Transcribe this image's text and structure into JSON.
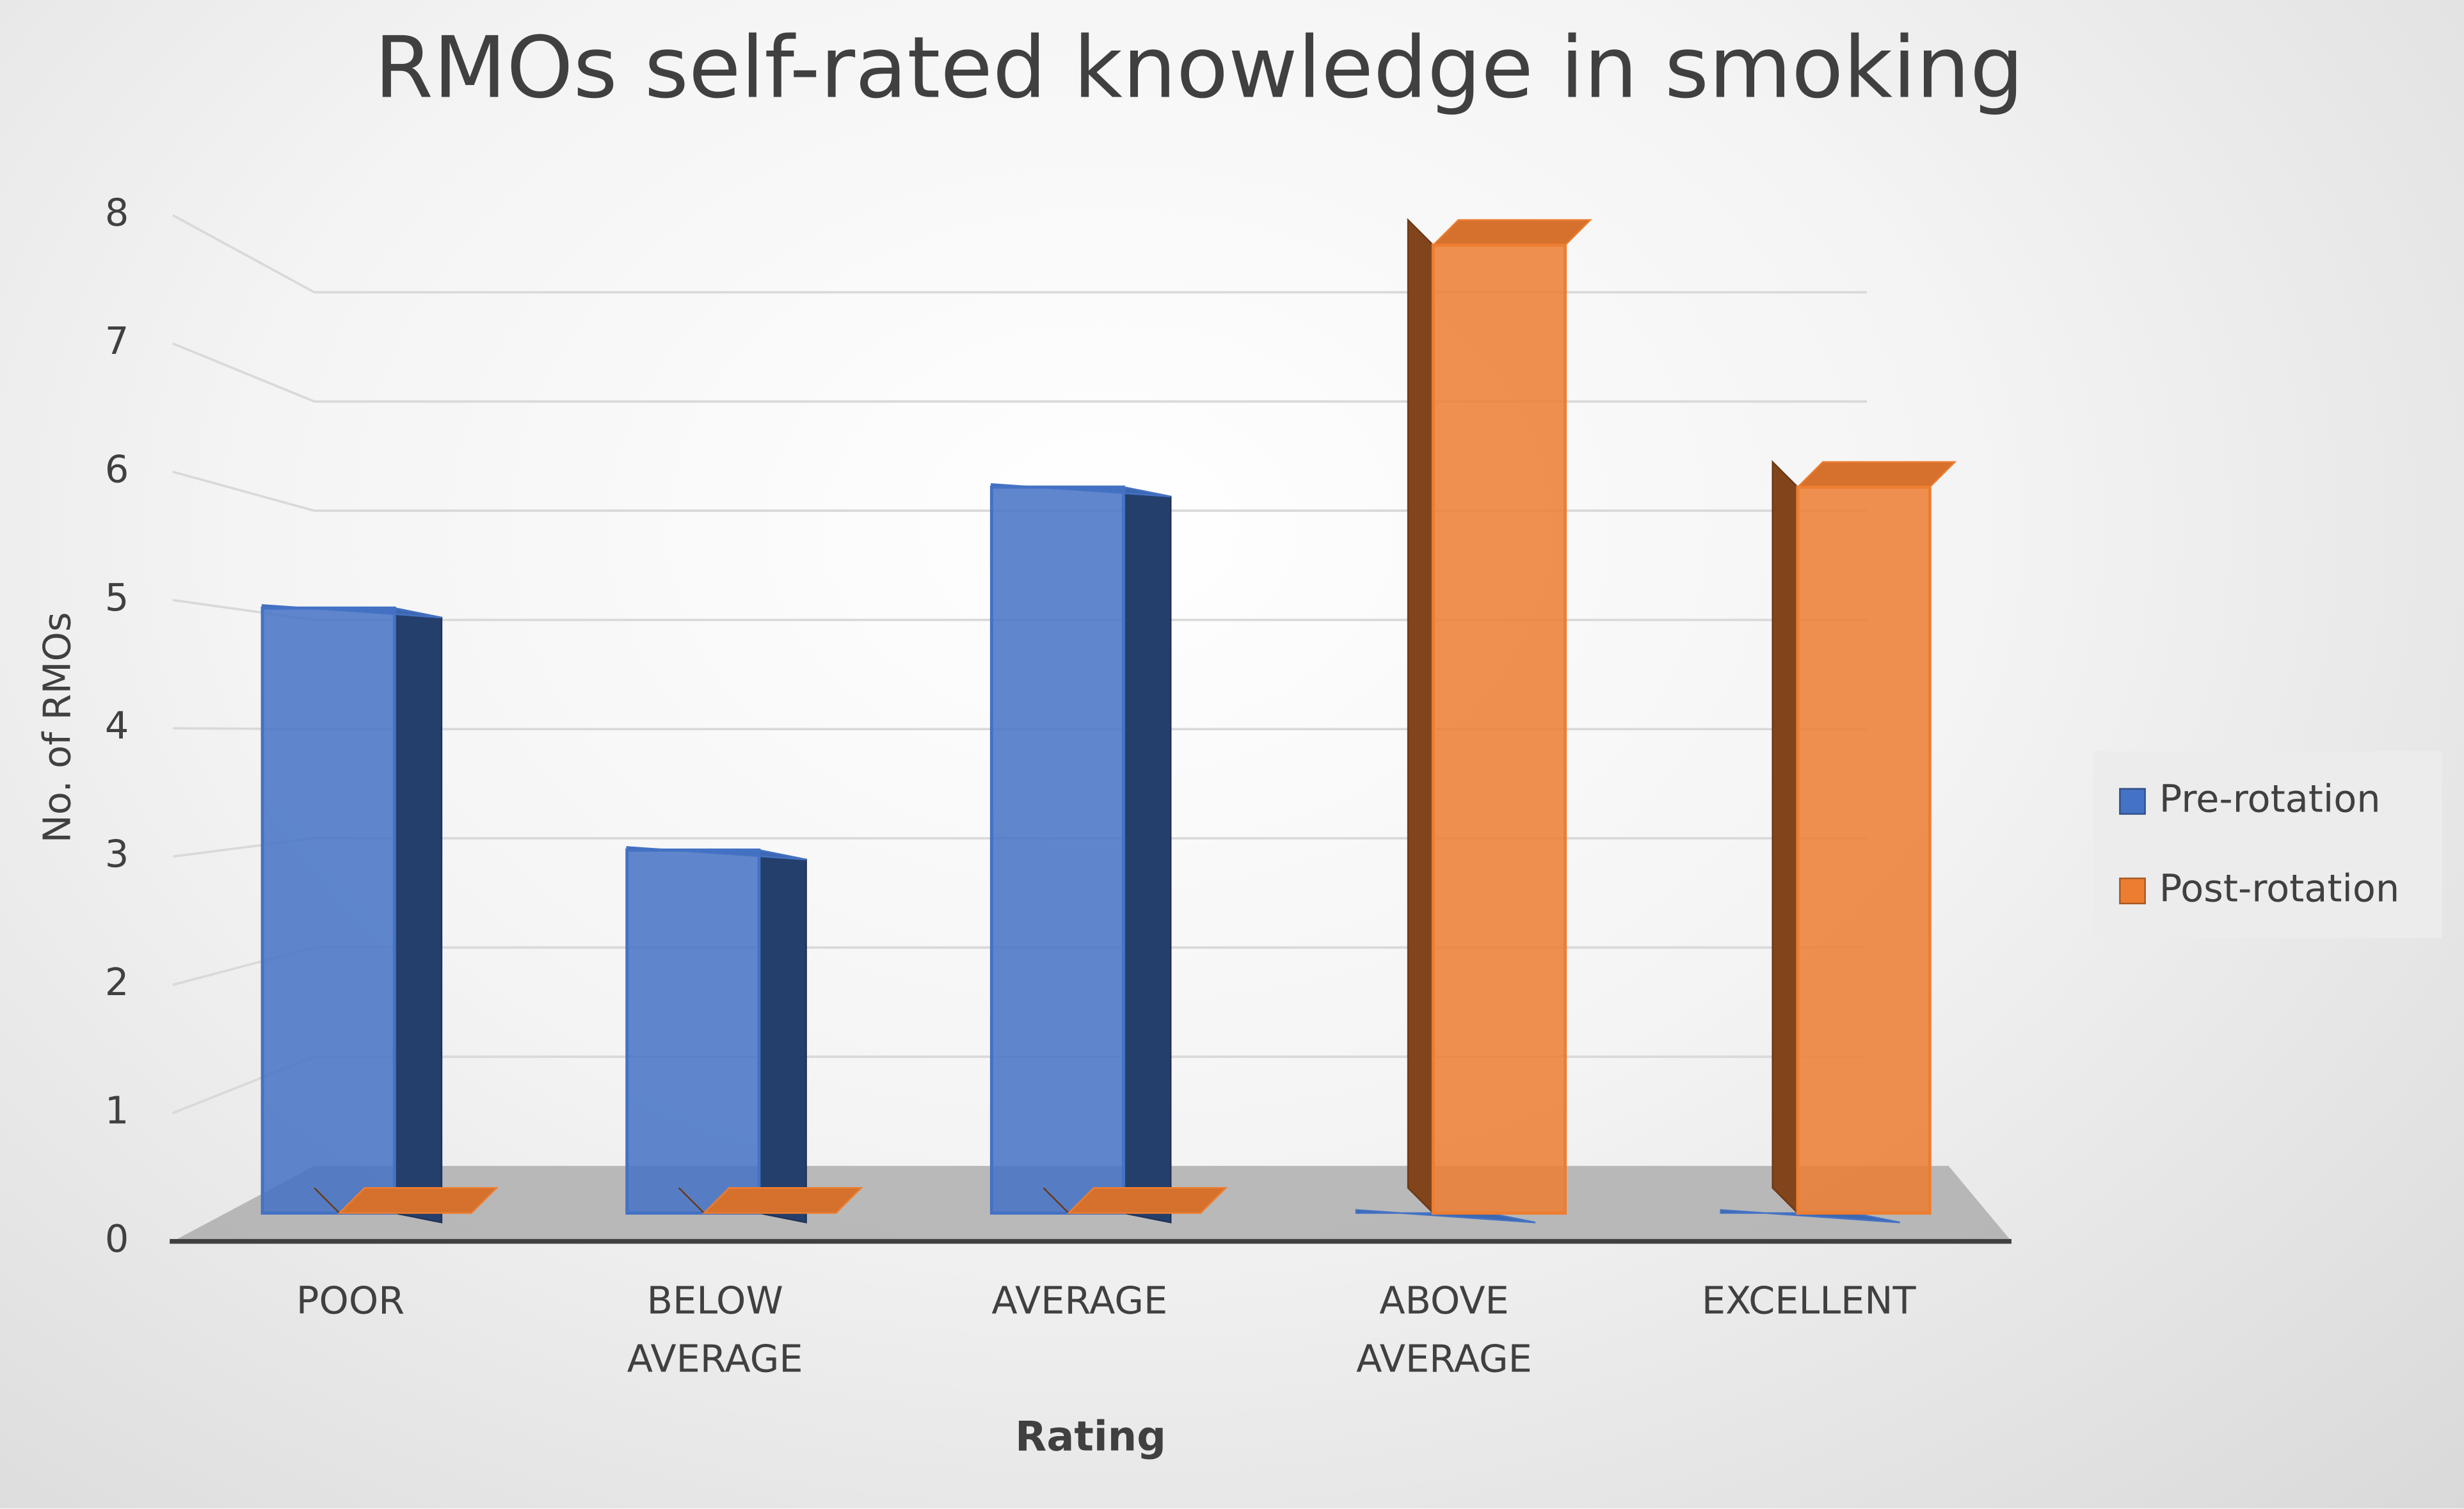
{
  "chart_data": {
    "type": "bar3d",
    "title": "RMOs self-rated knowledge in smoking",
    "x_label": "Rating",
    "y_label": "No. of RMOs",
    "categories": [
      "POOR",
      "BELOW AVERAGE",
      "AVERAGE",
      "ABOVE AVERAGE",
      "EXCELLENT"
    ],
    "series": [
      {
        "name": "Pre-rotation",
        "color": "#4472c4",
        "values": [
          5,
          3,
          6,
          0,
          0
        ]
      },
      {
        "name": "Post-rotation",
        "color": "#ed7d31",
        "values": [
          0,
          0,
          0,
          8,
          6
        ]
      }
    ],
    "ylim": [
      0,
      8
    ],
    "yticks": [
      0,
      1,
      2,
      3,
      4,
      5,
      6,
      7,
      8
    ],
    "grid": true,
    "legend": "right"
  }
}
